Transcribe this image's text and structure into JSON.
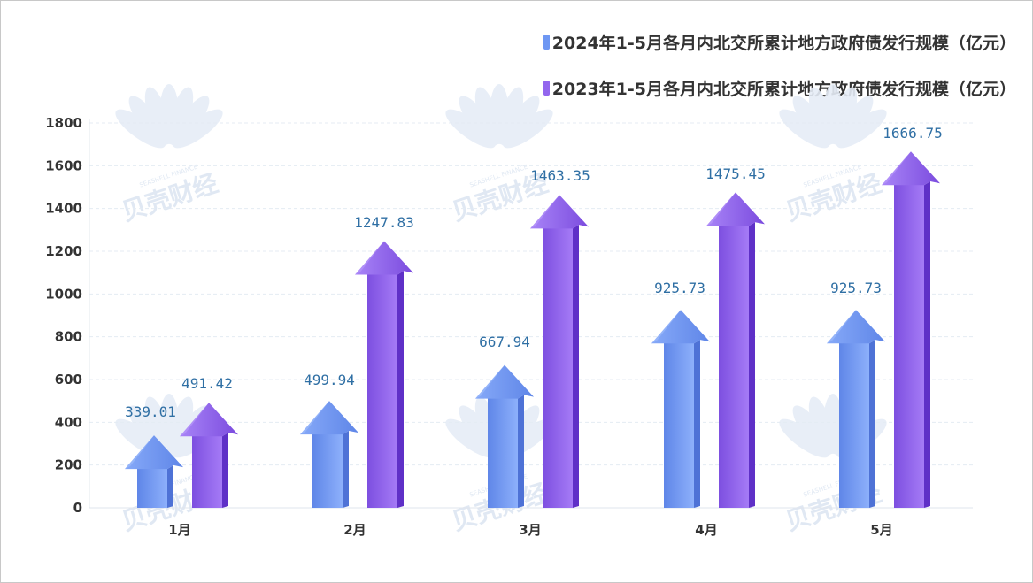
{
  "watermark": {
    "text": "贝壳财经",
    "subtext": "SEASHELL FINANCE"
  },
  "colors": {
    "series_2024": "#6e97f3",
    "series_2023": "#9366ee",
    "data_label": "#2f6fa4",
    "gridline": "#e4ebf3"
  },
  "chart_data": {
    "type": "bar",
    "categories": [
      "1月",
      "2月",
      "3月",
      "4月",
      "5月"
    ],
    "series": [
      {
        "name": "2024年1-5月各月内北交所累计地方政府债发行规模（亿元）",
        "values": [
          339.01,
          499.94,
          667.94,
          925.73,
          925.73
        ],
        "labels": [
          "339.01",
          "499.94",
          "667.94",
          "925.73",
          "925.73"
        ],
        "color": "#6e97f3"
      },
      {
        "name": "2023年1-5月各月内北交所累计地方政府债发行规模（亿元）",
        "values": [
          491.42,
          1247.83,
          1463.35,
          1475.45,
          1666.75
        ],
        "labels": [
          "491.42",
          "1247.83",
          "1463.35",
          "1475.45",
          "1666.75"
        ],
        "color": "#9366ee"
      }
    ],
    "ylim": [
      0,
      1800
    ],
    "yticks": [
      "0",
      "200",
      "400",
      "600",
      "800",
      "1000",
      "1200",
      "1400",
      "1600",
      "1800"
    ],
    "grid": true,
    "legend_position": "top-right",
    "mark_style": "3d-arrow"
  }
}
